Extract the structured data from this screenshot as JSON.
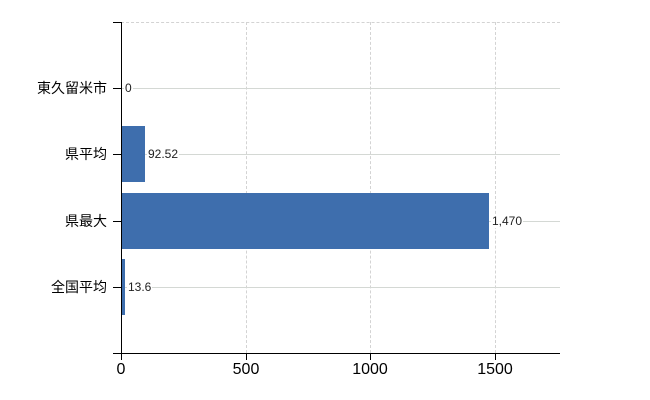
{
  "chart_data": {
    "type": "bar",
    "orientation": "horizontal",
    "title": "",
    "categories": [
      "東久留米市",
      "県平均",
      "県最大",
      "全国平均"
    ],
    "values": [
      0,
      92.52,
      1470,
      13.6
    ],
    "value_labels": [
      "0",
      "92.52",
      "1,470",
      "13.6"
    ],
    "x_ticks": [
      0,
      500,
      1000,
      1500
    ],
    "x_tick_labels": [
      "0",
      "500",
      "1000",
      "1500"
    ],
    "xlim": [
      0,
      1760
    ],
    "xlabel": "",
    "ylabel": "",
    "grid": "vertical-dashed and horizontal row lines",
    "legend": false
  },
  "colors": {
    "bar": "#3E6EAD",
    "axis": "#000000",
    "gridline": "#d3d3d3",
    "row_line": "#d4d8d4",
    "background": "#ffffff",
    "text": "#000000",
    "value_text": "#222222"
  }
}
